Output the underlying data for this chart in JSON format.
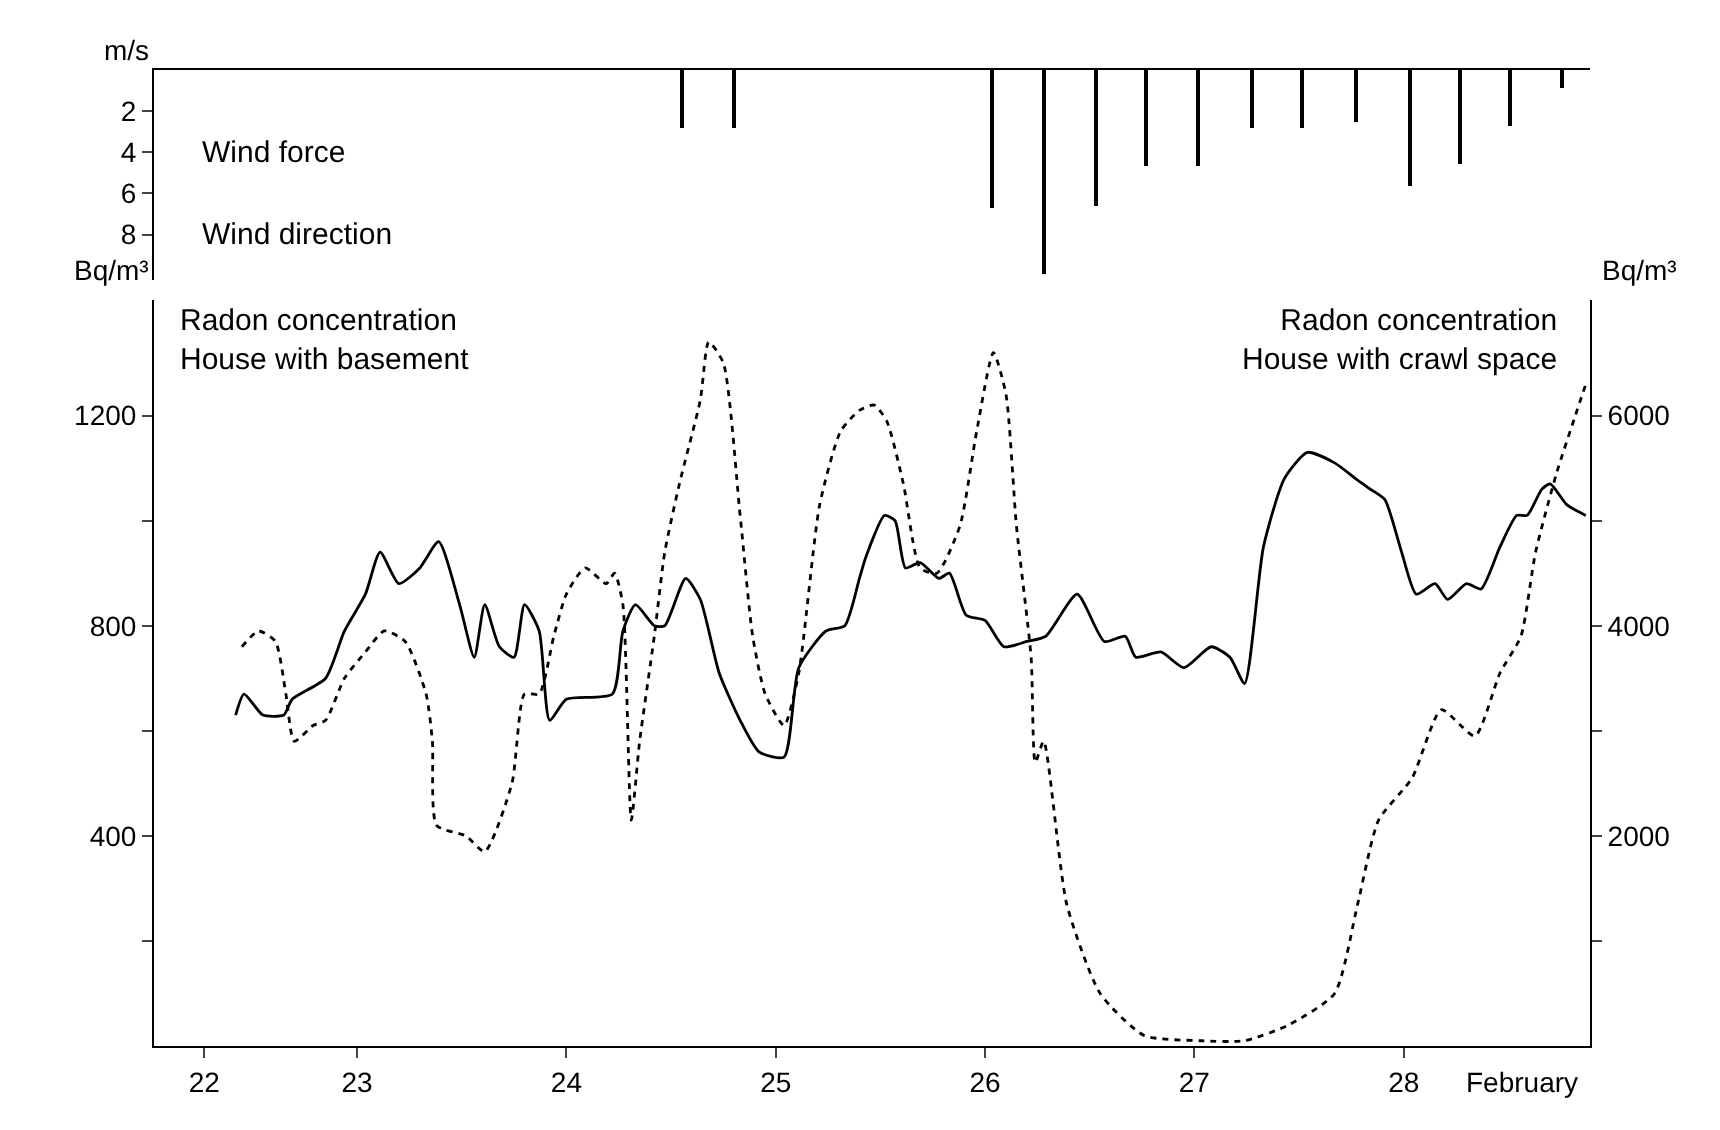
{
  "chart_data": [
    {
      "type": "bar",
      "ylabel": "m/s",
      "annotations": [
        "Wind force",
        "Wind direction"
      ],
      "color": "#000000",
      "x": [
        24.55,
        24.8,
        26.03,
        26.28,
        26.53,
        26.77,
        27.02,
        27.28,
        27.52,
        27.77,
        28.03,
        28.27,
        28.51,
        28.76
      ],
      "values": [
        2.8,
        2.8,
        6.7,
        9.9,
        6.6,
        4.7,
        4.7,
        2.8,
        2.8,
        2.5,
        5.6,
        4.6,
        2.7,
        0.9
      ],
      "xlim": [
        22.03,
        28.89
      ],
      "ylim": [
        10.2,
        0
      ],
      "yticks": [
        2,
        4,
        6,
        8
      ],
      "tick_labels": "y"
    },
    {
      "type": "line",
      "xlabel": "February",
      "ylabel": "Bq/m³",
      "y2label": "Bq/m³",
      "marker": "none",
      "annotations": [
        "Radon concentration\nHouse with basement",
        "Radon concentration\nHouse with crawl space"
      ],
      "xlim": [
        22.03,
        28.89
      ],
      "xticks": [
        {
          "value": 22.27,
          "label": "22"
        },
        23,
        24,
        25,
        26,
        27,
        28
      ],
      "ylim": [
        0,
        1420
      ],
      "yticks": [
        {
          "value": 200,
          "label": null
        },
        400,
        {
          "value": 600,
          "label": null
        },
        800,
        {
          "value": 1000,
          "label": null
        },
        1200
      ],
      "y2lim": [
        0,
        7100
      ],
      "y2ticks": [
        {
          "value": 1000,
          "label": null
        },
        2000,
        {
          "value": 3000,
          "label": null
        },
        4000,
        {
          "value": 5000,
          "label": null
        },
        6000
      ],
      "series": [
        {
          "color": "#000000",
          "line_style": "solid",
          "x": [
            22.42,
            22.46,
            22.55,
            22.65,
            22.69,
            22.85,
            22.94,
            23.04,
            23.11,
            23.2,
            23.3,
            23.39,
            23.49,
            23.56,
            23.61,
            23.68,
            23.75,
            23.8,
            23.87,
            23.92,
            24.0,
            24.22,
            24.27,
            24.33,
            24.42,
            24.47,
            24.57,
            24.64,
            24.73,
            24.83,
            24.92,
            25.04,
            25.11,
            25.24,
            25.33,
            25.4,
            25.43,
            25.52,
            25.57,
            25.62,
            25.69,
            25.78,
            25.83,
            25.91,
            26.0,
            26.09,
            26.2,
            26.29,
            26.44,
            26.57,
            26.67,
            26.72,
            26.84,
            26.95,
            27.08,
            27.17,
            27.24,
            27.33,
            27.43,
            27.54,
            27.67,
            27.77,
            27.84,
            27.91,
            27.99,
            28.06,
            28.15,
            28.21,
            28.3,
            28.37,
            28.46,
            28.54,
            28.59,
            28.66,
            28.7,
            28.78,
            28.87
          ],
          "values": [
            630,
            670,
            630,
            630,
            660,
            700,
            790,
            860,
            940,
            880,
            910,
            960,
            840,
            740,
            840,
            760,
            740,
            840,
            790,
            620,
            660,
            670,
            790,
            840,
            800,
            800,
            890,
            850,
            710,
            620,
            560,
            550,
            720,
            790,
            800,
            890,
            930,
            1010,
            1000,
            910,
            920,
            890,
            900,
            820,
            810,
            760,
            770,
            780,
            860,
            770,
            780,
            740,
            750,
            720,
            760,
            740,
            690,
            950,
            1080,
            1130,
            1110,
            1080,
            1060,
            1040,
            940,
            860,
            880,
            850,
            880,
            870,
            950,
            1010,
            1010,
            1060,
            1070,
            1030,
            1010
          ]
        },
        {
          "color": "#000000",
          "line_style": "dotted",
          "axis": "y2",
          "x": [
            22.45,
            22.53,
            22.61,
            22.66,
            22.7,
            22.79,
            22.85,
            22.94,
            23.04,
            23.13,
            23.23,
            23.33,
            23.36,
            23.38,
            23.52,
            23.61,
            23.74,
            23.8,
            23.87,
            23.94,
            24.0,
            24.09,
            24.19,
            24.23,
            24.27,
            24.31,
            24.35,
            24.42,
            24.47,
            24.54,
            24.64,
            24.68,
            24.75,
            24.83,
            24.89,
            24.95,
            25.04,
            25.11,
            25.21,
            25.31,
            25.4,
            25.47,
            25.53,
            25.61,
            25.69,
            25.77,
            25.88,
            25.96,
            26.04,
            26.1,
            26.15,
            26.22,
            26.24,
            26.28,
            26.39,
            26.55,
            26.76,
            27.03,
            27.24,
            27.45,
            27.67,
            27.78,
            27.88,
            28.04,
            28.18,
            28.34,
            28.46,
            28.56,
            28.63,
            28.73,
            28.82,
            28.87
          ],
          "values": [
            3800,
            3950,
            3850,
            3350,
            2900,
            3050,
            3100,
            3500,
            3750,
            3950,
            3850,
            3350,
            2900,
            2100,
            2000,
            1850,
            2500,
            3350,
            3350,
            3900,
            4300,
            4550,
            4400,
            4500,
            4200,
            2150,
            2900,
            3900,
            4700,
            5350,
            6150,
            6700,
            6500,
            5050,
            3900,
            3350,
            3050,
            3550,
            5150,
            5850,
            6050,
            6100,
            5950,
            5350,
            4550,
            4500,
            4950,
            5850,
            6600,
            6200,
            4950,
            3700,
            2700,
            2900,
            1350,
            500,
            100,
            50,
            50,
            200,
            500,
            1350,
            2150,
            2550,
            3200,
            2950,
            3550,
            3900,
            4700,
            5450,
            6000,
            6300
          ]
        }
      ]
    }
  ]
}
